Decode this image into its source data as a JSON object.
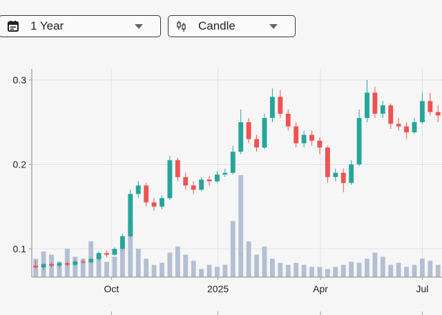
{
  "controls": {
    "range": {
      "label": "1 Year",
      "icon": "calendar-icon"
    },
    "chart_type": {
      "label": "Candle",
      "icon": "candlestick-icon"
    }
  },
  "colors": {
    "up": "#26a69a",
    "down": "#ef5350",
    "volume": "#b3bfd3",
    "grid": "#e3e3e3"
  },
  "chart_data": {
    "type": "candlestick",
    "title": "",
    "ylim": [
      0.067,
      0.305
    ],
    "y_ticks": [
      {
        "label": "0.1",
        "value": 0.1
      },
      {
        "label": "0.2",
        "value": 0.2
      },
      {
        "label": "0.3",
        "value": 0.3
      }
    ],
    "x_ticks": [
      {
        "label": "Oct",
        "index": 9.6
      },
      {
        "label": "2025",
        "index": 23.1
      },
      {
        "label": "Apr",
        "index": 36.1
      },
      {
        "label": "Jul",
        "index": 49.0
      }
    ],
    "interval": "weekly (approx.)",
    "candles": [
      [
        0.08,
        0.086,
        0.076,
        0.078
      ],
      [
        0.078,
        0.083,
        0.075,
        0.082
      ],
      [
        0.082,
        0.084,
        0.078,
        0.08
      ],
      [
        0.08,
        0.085,
        0.078,
        0.083
      ],
      [
        0.083,
        0.085,
        0.079,
        0.081
      ],
      [
        0.081,
        0.087,
        0.08,
        0.085
      ],
      [
        0.085,
        0.088,
        0.082,
        0.084
      ],
      [
        0.084,
        0.09,
        0.083,
        0.088
      ],
      [
        0.088,
        0.097,
        0.086,
        0.095
      ],
      [
        0.095,
        0.098,
        0.09,
        0.093
      ],
      [
        0.093,
        0.102,
        0.092,
        0.1
      ],
      [
        0.1,
        0.118,
        0.098,
        0.115
      ],
      [
        0.115,
        0.17,
        0.113,
        0.165
      ],
      [
        0.165,
        0.18,
        0.16,
        0.175
      ],
      [
        0.175,
        0.178,
        0.15,
        0.155
      ],
      [
        0.155,
        0.16,
        0.145,
        0.15
      ],
      [
        0.15,
        0.163,
        0.147,
        0.16
      ],
      [
        0.16,
        0.21,
        0.158,
        0.205
      ],
      [
        0.205,
        0.208,
        0.18,
        0.185
      ],
      [
        0.185,
        0.19,
        0.17,
        0.175
      ],
      [
        0.175,
        0.18,
        0.165,
        0.17
      ],
      [
        0.17,
        0.185,
        0.168,
        0.182
      ],
      [
        0.182,
        0.186,
        0.175,
        0.18
      ],
      [
        0.18,
        0.192,
        0.178,
        0.188
      ],
      [
        0.188,
        0.195,
        0.185,
        0.19
      ],
      [
        0.19,
        0.222,
        0.188,
        0.215
      ],
      [
        0.215,
        0.265,
        0.212,
        0.25
      ],
      [
        0.25,
        0.255,
        0.225,
        0.23
      ],
      [
        0.23,
        0.235,
        0.215,
        0.22
      ],
      [
        0.22,
        0.26,
        0.218,
        0.255
      ],
      [
        0.255,
        0.29,
        0.25,
        0.28
      ],
      [
        0.28,
        0.288,
        0.255,
        0.26
      ],
      [
        0.26,
        0.265,
        0.24,
        0.245
      ],
      [
        0.245,
        0.25,
        0.22,
        0.225
      ],
      [
        0.225,
        0.24,
        0.22,
        0.235
      ],
      [
        0.235,
        0.24,
        0.222,
        0.228
      ],
      [
        0.228,
        0.232,
        0.212,
        0.22
      ],
      [
        0.22,
        0.222,
        0.178,
        0.185
      ],
      [
        0.185,
        0.195,
        0.18,
        0.19
      ],
      [
        0.19,
        0.195,
        0.167,
        0.178
      ],
      [
        0.178,
        0.205,
        0.176,
        0.2
      ],
      [
        0.2,
        0.265,
        0.198,
        0.255
      ],
      [
        0.255,
        0.3,
        0.25,
        0.285
      ],
      [
        0.285,
        0.292,
        0.255,
        0.26
      ],
      [
        0.26,
        0.275,
        0.255,
        0.27
      ],
      [
        0.27,
        0.272,
        0.242,
        0.248
      ],
      [
        0.248,
        0.255,
        0.24,
        0.245
      ],
      [
        0.245,
        0.25,
        0.23,
        0.238
      ],
      [
        0.238,
        0.255,
        0.236,
        0.25
      ],
      [
        0.25,
        0.285,
        0.248,
        0.275
      ],
      [
        0.275,
        0.285,
        0.258,
        0.262
      ],
      [
        0.262,
        0.27,
        0.25,
        0.258
      ]
    ],
    "volume": [
      18,
      25,
      22,
      15,
      28,
      20,
      18,
      35,
      22,
      15,
      20,
      30,
      55,
      28,
      18,
      12,
      14,
      24,
      30,
      22,
      16,
      8,
      12,
      10,
      12,
      55,
      100,
      35,
      22,
      30,
      18,
      14,
      12,
      14,
      12,
      10,
      10,
      8,
      10,
      12,
      15,
      14,
      18,
      24,
      20,
      12,
      14,
      10,
      12,
      18,
      16,
      12
    ]
  }
}
